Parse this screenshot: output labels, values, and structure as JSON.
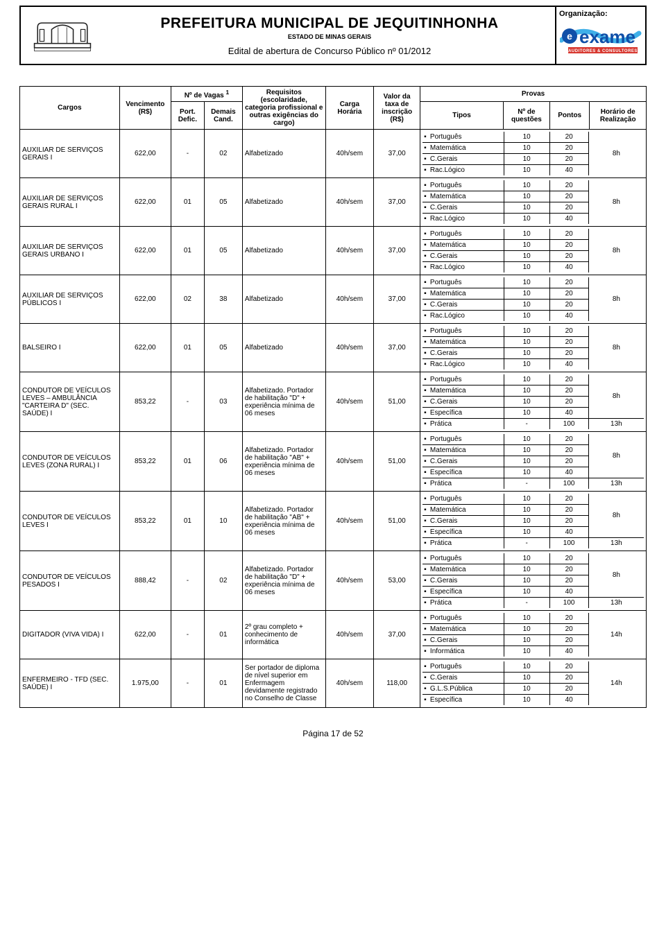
{
  "header": {
    "title": "PREFEITURA MUNICIPAL DE JEQUITINHONHA",
    "subtitle": "ESTADO DE MINAS GERAIS",
    "edital": "Edital de abertura de Concurso Público nº 01/2012",
    "org_label": "Organização:",
    "org_brand_e": "e",
    "org_brand_name": "exame",
    "org_brand_sub": "AUDITORES & CONSULTORES"
  },
  "th": {
    "cargos": "Cargos",
    "venc": "Vencimento (R$)",
    "vagas": "Nº de Vagas ",
    "vagas_sup": "1",
    "pd": "Port. Defic.",
    "dc": "Demais Cand.",
    "req": "Requisitos (escolaridade, categoria profissional e outras exigências do cargo)",
    "carga": "Carga Horária",
    "taxa": "Valor da taxa de inscrição (R$)",
    "provas": "Provas",
    "tipos": "Tipos",
    "nq": "Nº de questões",
    "pontos": "Pontos",
    "horario": "Horário de Realização"
  },
  "subjects": {
    "port": "Português",
    "mat": "Matemática",
    "cger": "C.Gerais",
    "rlog": "Rac.Lógico",
    "espec": "Específica",
    "prat": "Prática",
    "info": "Informática",
    "glsp": "G.L.S.Pública"
  },
  "rows": [
    {
      "cargo": "AUXILIAR DE SERVIÇOS GERAIS I",
      "venc": "622,00",
      "pd": "-",
      "dc": "02",
      "req": "Alfabetizado",
      "carga": "40h/sem",
      "taxa": "37,00",
      "tests": [
        {
          "tipo": "port",
          "nq": "10",
          "pt": "20",
          "hr": "8h",
          "hrspan": 4
        },
        {
          "tipo": "mat",
          "nq": "10",
          "pt": "20"
        },
        {
          "tipo": "cger",
          "nq": "10",
          "pt": "20"
        },
        {
          "tipo": "rlog",
          "nq": "10",
          "pt": "40"
        }
      ]
    },
    {
      "cargo": "AUXILIAR DE SERVIÇOS GERAIS RURAL I",
      "venc": "622,00",
      "pd": "01",
      "dc": "05",
      "req": "Alfabetizado",
      "carga": "40h/sem",
      "taxa": "37,00",
      "tests": [
        {
          "tipo": "port",
          "nq": "10",
          "pt": "20",
          "hr": "8h",
          "hrspan": 4
        },
        {
          "tipo": "mat",
          "nq": "10",
          "pt": "20"
        },
        {
          "tipo": "cger",
          "nq": "10",
          "pt": "20"
        },
        {
          "tipo": "rlog",
          "nq": "10",
          "pt": "40"
        }
      ]
    },
    {
      "cargo": "AUXILIAR DE SERVIÇOS GERAIS URBANO I",
      "venc": "622,00",
      "pd": "01",
      "dc": "05",
      "req": "Alfabetizado",
      "carga": "40h/sem",
      "taxa": "37,00",
      "tests": [
        {
          "tipo": "port",
          "nq": "10",
          "pt": "20",
          "hr": "8h",
          "hrspan": 4
        },
        {
          "tipo": "mat",
          "nq": "10",
          "pt": "20"
        },
        {
          "tipo": "cger",
          "nq": "10",
          "pt": "20"
        },
        {
          "tipo": "rlog",
          "nq": "10",
          "pt": "40"
        }
      ]
    },
    {
      "cargo": "AUXILIAR DE SERVIÇOS PÚBLICOS I",
      "venc": "622,00",
      "pd": "02",
      "dc": "38",
      "req": "Alfabetizado",
      "carga": "40h/sem",
      "taxa": "37,00",
      "tests": [
        {
          "tipo": "port",
          "nq": "10",
          "pt": "20",
          "hr": "8h",
          "hrspan": 4
        },
        {
          "tipo": "mat",
          "nq": "10",
          "pt": "20"
        },
        {
          "tipo": "cger",
          "nq": "10",
          "pt": "20"
        },
        {
          "tipo": "rlog",
          "nq": "10",
          "pt": "40"
        }
      ]
    },
    {
      "cargo": "BALSEIRO I",
      "venc": "622,00",
      "pd": "01",
      "dc": "05",
      "req": "Alfabetizado",
      "carga": "40h/sem",
      "taxa": "37,00",
      "tests": [
        {
          "tipo": "port",
          "nq": "10",
          "pt": "20",
          "hr": "8h",
          "hrspan": 4
        },
        {
          "tipo": "mat",
          "nq": "10",
          "pt": "20"
        },
        {
          "tipo": "cger",
          "nq": "10",
          "pt": "20"
        },
        {
          "tipo": "rlog",
          "nq": "10",
          "pt": "40"
        }
      ]
    },
    {
      "cargo": "CONDUTOR DE VEÍCULOS LEVES – AMBULÂNCIA \"CARTEIRA D\" (SEC. SAÚDE) I",
      "venc": "853,22",
      "pd": "-",
      "dc": "03",
      "req": "Alfabetizado. Portador de habilitação \"D\" + experiência mínima de 06 meses",
      "carga": "40h/sem",
      "taxa": "51,00",
      "tests": [
        {
          "tipo": "port",
          "nq": "10",
          "pt": "20",
          "hr": "8h",
          "hrspan": 4
        },
        {
          "tipo": "mat",
          "nq": "10",
          "pt": "20"
        },
        {
          "tipo": "cger",
          "nq": "10",
          "pt": "20"
        },
        {
          "tipo": "espec",
          "nq": "10",
          "pt": "40"
        },
        {
          "tipo": "prat",
          "nq": "-",
          "pt": "100",
          "hr": "13h",
          "hrspan": 1
        }
      ]
    },
    {
      "cargo": "CONDUTOR DE VEÍCULOS LEVES (ZONA RURAL) I",
      "venc": "853,22",
      "pd": "01",
      "dc": "06",
      "req": "Alfabetizado. Portador de habilitação \"AB\" + experiência mínima de 06 meses",
      "carga": "40h/sem",
      "taxa": "51,00",
      "tests": [
        {
          "tipo": "port",
          "nq": "10",
          "pt": "20",
          "hr": "8h",
          "hrspan": 4
        },
        {
          "tipo": "mat",
          "nq": "10",
          "pt": "20"
        },
        {
          "tipo": "cger",
          "nq": "10",
          "pt": "20"
        },
        {
          "tipo": "espec",
          "nq": "10",
          "pt": "40"
        },
        {
          "tipo": "prat",
          "nq": "-",
          "pt": "100",
          "hr": "13h",
          "hrspan": 1
        }
      ]
    },
    {
      "cargo": "CONDUTOR DE VEÍCULOS LEVES I",
      "venc": "853,22",
      "pd": "01",
      "dc": "10",
      "req": "Alfabetizado. Portador de habilitação \"AB\" + experiência mínima de 06 meses",
      "carga": "40h/sem",
      "taxa": "51,00",
      "tests": [
        {
          "tipo": "port",
          "nq": "10",
          "pt": "20",
          "hr": "8h",
          "hrspan": 4
        },
        {
          "tipo": "mat",
          "nq": "10",
          "pt": "20"
        },
        {
          "tipo": "cger",
          "nq": "10",
          "pt": "20"
        },
        {
          "tipo": "espec",
          "nq": "10",
          "pt": "40"
        },
        {
          "tipo": "prat",
          "nq": "-",
          "pt": "100",
          "hr": "13h",
          "hrspan": 1
        }
      ]
    },
    {
      "cargo": "CONDUTOR DE VEÍCULOS PESADOS I",
      "venc": "888,42",
      "pd": "-",
      "dc": "02",
      "req": "Alfabetizado. Portador de habilitação \"D\" + experiência mínima de 06 meses",
      "carga": "40h/sem",
      "taxa": "53,00",
      "tests": [
        {
          "tipo": "port",
          "nq": "10",
          "pt": "20",
          "hr": "8h",
          "hrspan": 4
        },
        {
          "tipo": "mat",
          "nq": "10",
          "pt": "20"
        },
        {
          "tipo": "cger",
          "nq": "10",
          "pt": "20"
        },
        {
          "tipo": "espec",
          "nq": "10",
          "pt": "40"
        },
        {
          "tipo": "prat",
          "nq": "-",
          "pt": "100",
          "hr": "13h",
          "hrspan": 1
        }
      ]
    },
    {
      "cargo": "DIGITADOR (VIVA VIDA) I",
      "venc": "622,00",
      "pd": "-",
      "dc": "01",
      "req": "2º grau completo + conhecimento de informática",
      "carga": "40h/sem",
      "taxa": "37,00",
      "tests": [
        {
          "tipo": "port",
          "nq": "10",
          "pt": "20",
          "hr": "14h",
          "hrspan": 4
        },
        {
          "tipo": "mat",
          "nq": "10",
          "pt": "20"
        },
        {
          "tipo": "cger",
          "nq": "10",
          "pt": "20"
        },
        {
          "tipo": "info",
          "nq": "10",
          "pt": "40"
        }
      ]
    },
    {
      "cargo": "ENFERMEIRO - TFD (SEC. SAÚDE) I",
      "venc": "1.975,00",
      "pd": "-",
      "dc": "01",
      "req": "Ser portador de diploma de nível superior em Enfermagem devidamente registrado no Conselho de Classe",
      "carga": "40h/sem",
      "taxa": "118,00",
      "tests": [
        {
          "tipo": "port",
          "nq": "10",
          "pt": "20",
          "hr": "14h",
          "hrspan": 4
        },
        {
          "tipo": "cger",
          "nq": "10",
          "pt": "20"
        },
        {
          "tipo": "glsp",
          "nq": "10",
          "pt": "20"
        },
        {
          "tipo": "espec",
          "nq": "10",
          "pt": "40"
        }
      ]
    }
  ],
  "footer": "Página 17 de 52",
  "colors": {
    "exame_blue": "#0f4fa8",
    "exame_swoosh": "#3fb0e8",
    "exame_red": "#d7372f",
    "logo_stroke": "#222222"
  }
}
